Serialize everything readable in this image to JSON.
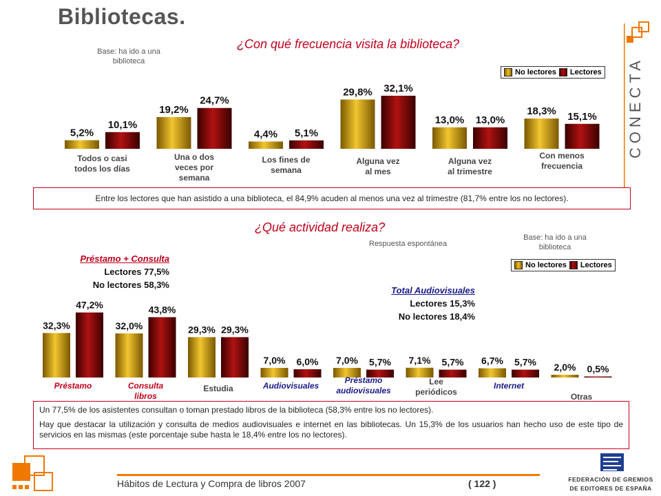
{
  "page": {
    "title": "Bibliotecas.",
    "question1": "¿Con qué frecuencia visita la biblioteca?",
    "base1": "Base: ha ido a una biblioteca",
    "question2": "¿Qué actividad realiza?",
    "respuesta": "Respuesta espontánea",
    "base2": "Base: ha ido a una biblioteca",
    "legend_no_lectores": "No lectores",
    "legend_lectores": "Lectores",
    "note1": "Entre los lectores que han asistido a una biblioteca, el 84,9% acuden al menos una vez al trimestre (81,7% entre los no lectores).",
    "note2_p1": "Un 77,5% de los asistentes consultan o toman prestado libros de la biblioteca (58,3% entre los no lectores).",
    "note2_p2": "Hay que destacar la utilización y consulta de medios audiovisuales e internet en las bibliotecas. Un 15,3% de los usuarios han hecho uso de este tipo de servicios en las mismas (este porcentaje sube hasta le 18,4% entre los no lectores).",
    "hl1_title": "Préstamo + Consulta",
    "hl1_l": "Lectores 77,5%",
    "hl1_nl": "No lectores 58,3%",
    "hl2_title": "Total Audiovisuales",
    "hl2_l": "Lectores 15,3%",
    "hl2_nl": "No lectores 18,4%",
    "footer": "Hábitos de Lectura y Compra de libros 2007",
    "page_number": "( 122 )",
    "logo_conecta": "CONECTA",
    "logo_fge_1": "FEDERACIÓN DE GREMIOS",
    "logo_fge_2": "DE EDITORES DE ESPAÑA"
  },
  "colors": {
    "no_lectores": "#e0a800",
    "lectores": "#8b0000",
    "accent": "#c0001a",
    "audiovisual_label": "#1a1a8c",
    "footer_line": "#f07800"
  },
  "chart_data": [
    {
      "type": "bar",
      "title": "¿Con qué frecuencia visita la biblioteca?",
      "categories": [
        "Todos o casi todos los días",
        "Una o dos veces por semana",
        "Los fines de semana",
        "Alguna vez al mes",
        "Alguna vez al trimestre",
        "Con menos frecuencia"
      ],
      "category_lines": [
        [
          "Todos o casi",
          "todos los días"
        ],
        [
          "Una o dos",
          "veces por",
          "semana"
        ],
        [
          "Los fines de",
          "semana"
        ],
        [
          "Alguna vez",
          "al mes"
        ],
        [
          "Alguna vez",
          "al trimestre"
        ],
        [
          "Con menos",
          "frecuencia"
        ]
      ],
      "series": [
        {
          "name": "No lectores",
          "values": [
            5.2,
            19.2,
            4.4,
            29.8,
            13.0,
            18.3
          ],
          "labels": [
            "5,2%",
            "19,2%",
            "4,4%",
            "29,8%",
            "13,0%",
            "18,3%"
          ]
        },
        {
          "name": "Lectores",
          "values": [
            10.1,
            24.7,
            5.1,
            32.1,
            13.0,
            15.1
          ],
          "labels": [
            "10,1%",
            "24,7%",
            "5,1%",
            "32,1%",
            "13,0%",
            "15,1%"
          ]
        }
      ],
      "ylim": [
        0,
        35
      ],
      "legend": "top-right"
    },
    {
      "type": "bar",
      "title": "¿Qué actividad realiza?",
      "categories": [
        "Préstamo",
        "Consulta libros",
        "Estudia",
        "Audiovisuales",
        "Préstamo audiovisuales",
        "Lee periódicos",
        "Internet",
        "Otras"
      ],
      "category_lines": [
        [
          "Préstamo"
        ],
        [
          "Consulta",
          "libros"
        ],
        [
          "Estudia"
        ],
        [
          "Audiovisuales"
        ],
        [
          "Préstamo",
          "audiovisuales"
        ],
        [
          "Lee",
          "periódicos"
        ],
        [
          "Internet"
        ],
        [
          "Otras"
        ]
      ],
      "category_styles": [
        "red",
        "red",
        "plain",
        "blue",
        "blue",
        "plain",
        "blue",
        "plain"
      ],
      "series": [
        {
          "name": "No lectores",
          "values": [
            32.3,
            32.0,
            29.3,
            7.0,
            7.0,
            7.1,
            6.7,
            2.0
          ],
          "labels": [
            "32,3%",
            "32,0%",
            "29,3%",
            "7,0%",
            "7,0%",
            "7,1%",
            "6,7%",
            "2,0%"
          ]
        },
        {
          "name": "Lectores",
          "values": [
            47.2,
            43.8,
            29.3,
            6.0,
            5.7,
            5.7,
            5.7,
            0.5
          ],
          "labels": [
            "47,2%",
            "43,8%",
            "29,3%",
            "6,0%",
            "5,7%",
            "5,7%",
            "5,7%",
            "0,5%"
          ]
        }
      ],
      "ylim": [
        0,
        50
      ],
      "legend": "top-right"
    }
  ]
}
